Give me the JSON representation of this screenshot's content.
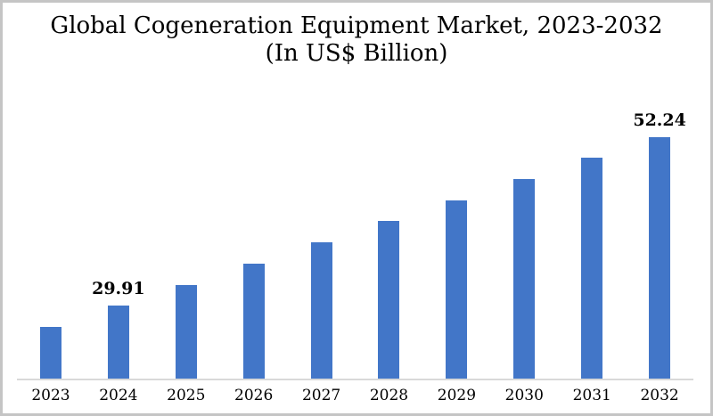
{
  "page": {
    "background_color": "#ffffff",
    "frame_border_color": "#c5c5c5"
  },
  "chart_data": {
    "type": "bar",
    "title": "Global Cogeneration Equipment Market, 2023-2032",
    "subtitle": "(In US$ Billion)",
    "categories": [
      "2023",
      "2024",
      "2025",
      "2026",
      "2027",
      "2028",
      "2029",
      "2030",
      "2031",
      "2032"
    ],
    "values": [
      27.12,
      29.91,
      32.7,
      35.49,
      38.28,
      41.07,
      43.86,
      46.65,
      49.45,
      52.24
    ],
    "data_labels": [
      "",
      "29.91",
      "",
      "",
      "",
      "",
      "",
      "",
      "",
      "52.24"
    ],
    "bar_color": "#4276C8",
    "axis_line_color": "#d9d9d9",
    "text_color": "#000000",
    "ylim": [
      20.3,
      56.3
    ],
    "grid": "off",
    "legend": "none",
    "y_axis_visible": false,
    "x_axis_labels_visible": true
  }
}
